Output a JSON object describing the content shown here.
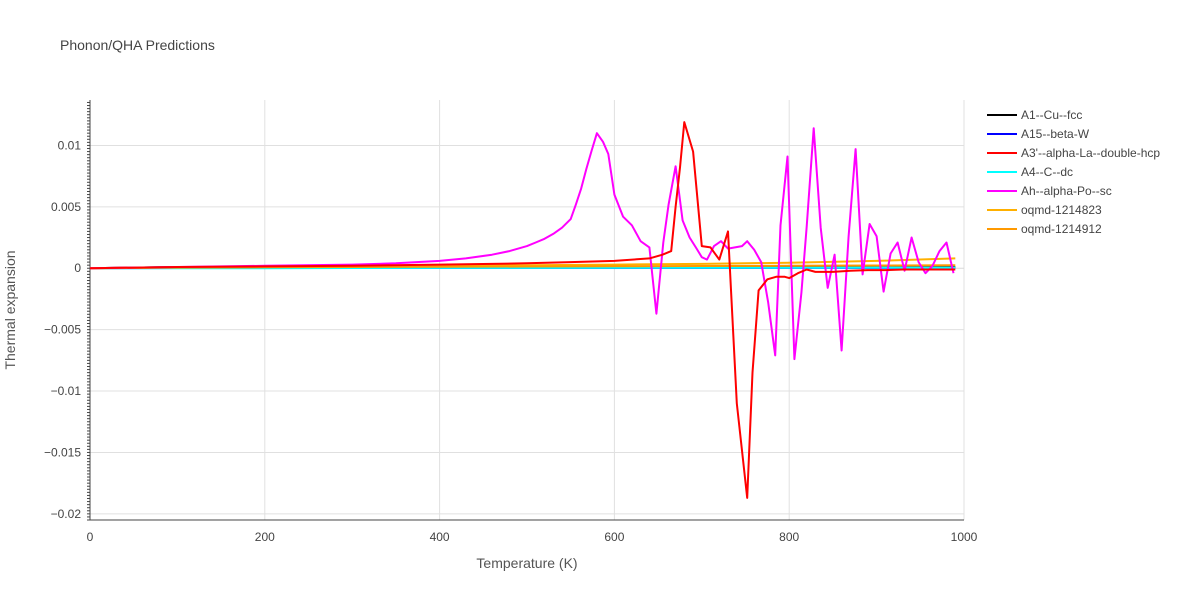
{
  "chart_data": {
    "type": "line",
    "title": "Phonon/QHA Predictions",
    "xlabel": "Temperature (K)",
    "ylabel": "Thermal expansion",
    "xlim": [
      0,
      1000
    ],
    "ylim": [
      -0.0205,
      0.0137
    ],
    "xticks": [
      0,
      200,
      400,
      600,
      800,
      1000
    ],
    "xtick_labels": [
      "0",
      "200",
      "400",
      "600",
      "800",
      "1000"
    ],
    "yticks": [
      -0.02,
      -0.015,
      -0.01,
      -0.005,
      0,
      0.005,
      0.01
    ],
    "ytick_labels": [
      "−0.02",
      "−0.015",
      "−0.01",
      "−0.005",
      "0",
      "0.005",
      "0.01"
    ],
    "grid": true,
    "legend_position": "right",
    "series": [
      {
        "name": "A1--Cu--fcc",
        "color": "#000000",
        "x": [
          0,
          50,
          100,
          200,
          300,
          400,
          500,
          600,
          700,
          800,
          900,
          990
        ],
        "y": [
          0,
          5e-05,
          0.0001,
          0.0001,
          0.0001,
          0.0001,
          0.0001,
          0.0001,
          0.0001,
          0.0001,
          0.0001,
          0.0001
        ]
      },
      {
        "name": "A15--beta-W",
        "color": "#0000ff",
        "x": [
          0,
          100,
          200,
          400,
          600,
          800,
          990
        ],
        "y": [
          0,
          2e-05,
          2e-05,
          3e-05,
          3e-05,
          3e-05,
          3e-05
        ]
      },
      {
        "name": "A3'--alpha-La--double-hcp",
        "color": "#ff0000",
        "x": [
          0,
          100,
          200,
          300,
          400,
          500,
          550,
          600,
          640,
          655,
          665,
          670,
          675,
          680,
          690,
          700,
          710,
          720,
          730,
          740,
          752,
          758,
          765,
          775,
          785,
          795,
          800,
          810,
          820,
          830,
          850,
          870,
          890,
          910,
          930,
          950,
          970,
          990
        ],
        "y": [
          0,
          0.0001,
          0.00015,
          0.0002,
          0.0003,
          0.0004,
          0.0005,
          0.0006,
          0.0008,
          0.0011,
          0.0014,
          0.005,
          0.0082,
          0.0119,
          0.0095,
          0.0018,
          0.0017,
          0.0007,
          0.003,
          -0.011,
          -0.0187,
          -0.0085,
          -0.0018,
          -0.0009,
          -0.0007,
          -0.0007,
          -0.0008,
          -0.0004,
          -0.0001,
          -0.0003,
          -0.0003,
          -0.0002,
          -0.00015,
          -0.00015,
          -0.0001,
          -0.0001,
          -0.0001,
          -0.0001
        ]
      },
      {
        "name": "A4--C--dc",
        "color": "#00ffff",
        "x": [
          0,
          100,
          200,
          300,
          400,
          500,
          600,
          700,
          800,
          900,
          990
        ],
        "y": [
          0,
          0,
          0,
          2e-05,
          3e-05,
          3e-05,
          4e-05,
          4e-05,
          4e-05,
          5e-05,
          5e-05
        ]
      },
      {
        "name": "Ah--alpha-Po--sc",
        "color": "#ff00ff",
        "x": [
          0,
          100,
          200,
          300,
          350,
          400,
          430,
          460,
          480,
          500,
          510,
          520,
          530,
          540,
          550,
          556,
          562,
          568,
          574,
          580,
          587,
          593,
          600,
          610,
          620,
          630,
          640,
          648,
          656,
          662,
          670,
          678,
          686,
          694,
          700,
          706,
          714,
          722,
          730,
          738,
          746,
          752,
          760,
          768,
          776,
          784,
          790,
          798,
          806,
          814,
          820,
          828,
          836,
          844,
          852,
          860,
          868,
          876,
          884,
          892,
          900,
          908,
          916,
          924,
          932,
          940,
          948,
          956,
          964,
          972,
          980,
          988
        ],
        "y": [
          0,
          0.0001,
          0.0002,
          0.0003,
          0.0004,
          0.0006,
          0.0008,
          0.0011,
          0.0014,
          0.0018,
          0.0021,
          0.0024,
          0.0028,
          0.0033,
          0.004,
          0.0052,
          0.0065,
          0.0081,
          0.0096,
          0.011,
          0.0103,
          0.0093,
          0.006,
          0.0042,
          0.0035,
          0.0022,
          0.0017,
          -0.0037,
          0.0021,
          0.0052,
          0.0083,
          0.0039,
          0.0025,
          0.0016,
          0.0009,
          0.0007,
          0.0018,
          0.0022,
          0.0016,
          0.0017,
          0.0018,
          0.0022,
          0.0015,
          0.0005,
          -0.0028,
          -0.0071,
          0.0035,
          0.0091,
          -0.0074,
          -0.002,
          0.0034,
          0.0114,
          0.0033,
          -0.0016,
          0.0011,
          -0.0067,
          0.0026,
          0.0097,
          -0.0005,
          0.0036,
          0.0026,
          -0.0019,
          0.0012,
          0.0021,
          -0.0002,
          0.0025,
          0.0005,
          -0.0004,
          0.0002,
          0.0014,
          0.0021,
          -0.0004
        ]
      },
      {
        "name": "oqmd-1214823",
        "color": "#ffb000",
        "x": [
          0,
          100,
          200,
          300,
          400,
          500,
          600,
          700,
          800,
          900,
          990
        ],
        "y": [
          0,
          8e-05,
          0.00012,
          0.00016,
          0.0002,
          0.00025,
          0.0003,
          0.00035,
          0.00045,
          0.0006,
          0.0008
        ]
      },
      {
        "name": "oqmd-1214912",
        "color": "#ff9900",
        "x": [
          0,
          100,
          200,
          300,
          400,
          500,
          600,
          700,
          800,
          900,
          990
        ],
        "y": [
          0,
          5e-05,
          8e-05,
          0.0001,
          0.00012,
          0.00014,
          0.00016,
          0.00018,
          0.0002,
          0.00022,
          0.00024
        ]
      }
    ]
  }
}
